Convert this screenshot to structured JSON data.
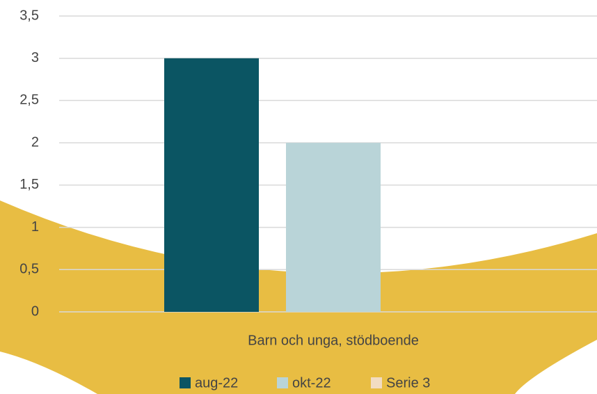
{
  "chart_data": {
    "type": "bar",
    "categories": [
      "Barn och unga, stödboende"
    ],
    "series": [
      {
        "name": "aug-22",
        "color": "#0b5563",
        "values": [
          3
        ]
      },
      {
        "name": "okt-22",
        "color": "#b9d4d8",
        "values": [
          2
        ]
      },
      {
        "name": "Serie 3",
        "color": "#f2dcc2",
        "values": [
          0
        ]
      }
    ],
    "ylim": [
      0,
      3.5
    ],
    "yticks": [
      0,
      {
        "value": 0.5,
        "label": "0,5"
      },
      1,
      {
        "value": 1.5,
        "label": "1,5"
      },
      2,
      {
        "value": 2.5,
        "label": "2,5"
      },
      3,
      {
        "value": 3.5,
        "label": "3,5"
      }
    ],
    "grid": true,
    "legend": "bottom"
  }
}
